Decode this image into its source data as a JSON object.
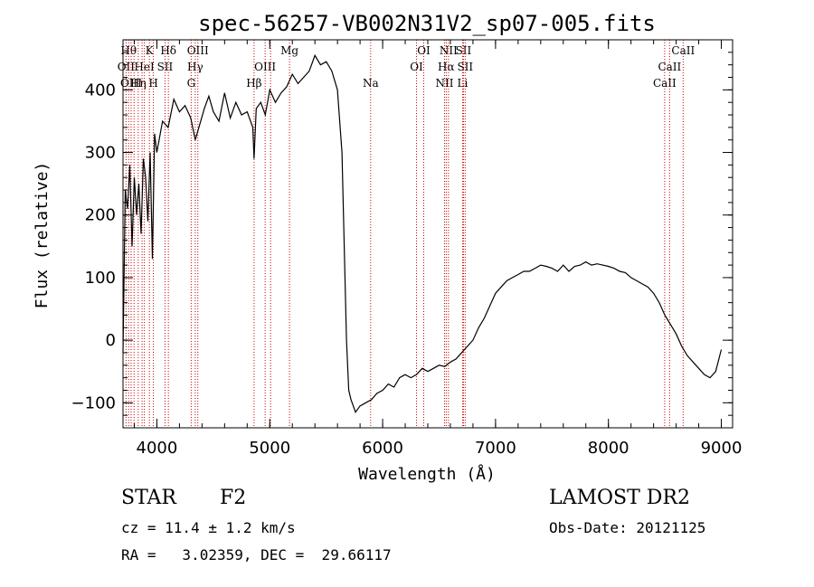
{
  "chart_data": {
    "type": "line",
    "title": "spec-56257-VB002N31V2_sp07-005.fits",
    "xlabel": "Wavelength (Å)",
    "ylabel": "Flux (relative)",
    "xlim": [
      3700,
      9100
    ],
    "ylim": [
      -140,
      480
    ],
    "xticks": [
      4000,
      5000,
      6000,
      7000,
      8000,
      9000
    ],
    "yticks": [
      -100,
      0,
      100,
      200,
      300,
      400
    ],
    "grid": false,
    "line_color": "#000000",
    "marker_color": "#cc0000",
    "series": [
      {
        "x": [
          3700,
          3720,
          3740,
          3760,
          3780,
          3800,
          3820,
          3840,
          3860,
          3880,
          3900,
          3920,
          3940,
          3960,
          3980,
          4000,
          4050,
          4100,
          4150,
          4200,
          4250,
          4300,
          4340,
          4380,
          4420,
          4460,
          4500,
          4550,
          4600,
          4650,
          4700,
          4750,
          4800,
          4850,
          4861,
          4880,
          4920,
          4960,
          5000,
          5050,
          5100,
          5150,
          5200,
          5250,
          5300,
          5350,
          5400,
          5450,
          5500,
          5550,
          5600,
          5640,
          5660,
          5680,
          5700,
          5720,
          5740,
          5760,
          5780,
          5800,
          5850,
          5900,
          5950,
          6000,
          6050,
          6100,
          6150,
          6200,
          6250,
          6300,
          6350,
          6400,
          6450,
          6500,
          6550,
          6600,
          6650,
          6700,
          6750,
          6800,
          6850,
          6900,
          6950,
          7000,
          7050,
          7100,
          7150,
          7200,
          7250,
          7300,
          7350,
          7400,
          7450,
          7500,
          7550,
          7600,
          7650,
          7700,
          7750,
          7800,
          7850,
          7900,
          7950,
          8000,
          8050,
          8100,
          8150,
          8200,
          8250,
          8300,
          8350,
          8400,
          8450,
          8500,
          8550,
          8600,
          8650,
          8700,
          8750,
          8800,
          8850,
          8900,
          8950,
          9000
        ],
        "y": [
          -20,
          240,
          210,
          280,
          150,
          260,
          200,
          250,
          170,
          290,
          260,
          190,
          300,
          130,
          330,
          300,
          350,
          340,
          385,
          365,
          375,
          355,
          320,
          345,
          370,
          390,
          365,
          350,
          395,
          355,
          380,
          360,
          365,
          340,
          290,
          370,
          380,
          360,
          400,
          380,
          395,
          405,
          425,
          410,
          420,
          430,
          455,
          440,
          445,
          430,
          400,
          300,
          150,
          0,
          -80,
          -95,
          -105,
          -115,
          -110,
          -105,
          -100,
          -95,
          -85,
          -80,
          -70,
          -75,
          -60,
          -55,
          -60,
          -55,
          -45,
          -50,
          -45,
          -40,
          -42,
          -35,
          -30,
          -20,
          -10,
          0,
          20,
          35,
          55,
          75,
          85,
          95,
          100,
          105,
          110,
          110,
          115,
          120,
          118,
          115,
          110,
          120,
          110,
          118,
          120,
          125,
          120,
          122,
          120,
          118,
          115,
          110,
          108,
          100,
          95,
          90,
          85,
          75,
          60,
          40,
          25,
          10,
          -10,
          -25,
          -35,
          -45,
          -55,
          -60,
          -50,
          -15
        ]
      }
    ],
    "line_markers": [
      {
        "wave": 3727,
        "label": "OII",
        "row": 1
      },
      {
        "wave": 3750,
        "label": "Hθ",
        "row": 0
      },
      {
        "wave": 3772,
        "label": "OIII",
        "row": 2
      },
      {
        "wave": 3798,
        "label": "",
        "row": 0
      },
      {
        "wave": 3835,
        "label": "Hη",
        "row": 2
      },
      {
        "wave": 3869,
        "label": "",
        "row": 0
      },
      {
        "wave": 3889,
        "label": "HeI",
        "row": 1
      },
      {
        "wave": 3934,
        "label": "K",
        "row": 0
      },
      {
        "wave": 3969,
        "label": "H",
        "row": 2
      },
      {
        "wave": 4072,
        "label": "SII",
        "row": 1
      },
      {
        "wave": 4102,
        "label": "Hδ",
        "row": 0
      },
      {
        "wave": 4304,
        "label": "G",
        "row": 2
      },
      {
        "wave": 4340,
        "label": "Hγ",
        "row": 1
      },
      {
        "wave": 4363,
        "label": "OIII",
        "row": 0
      },
      {
        "wave": 4861,
        "label": "Hβ",
        "row": 2
      },
      {
        "wave": 4959,
        "label": "OIII",
        "row": 1
      },
      {
        "wave": 5007,
        "label": "",
        "row": 1
      },
      {
        "wave": 5175,
        "label": "Mg",
        "row": 0
      },
      {
        "wave": 5894,
        "label": "Na",
        "row": 2
      },
      {
        "wave": 6300,
        "label": "OI",
        "row": 1
      },
      {
        "wave": 6364,
        "label": "OI",
        "row": 0
      },
      {
        "wave": 6548,
        "label": "NII",
        "row": 2
      },
      {
        "wave": 6563,
        "label": "Hα",
        "row": 1
      },
      {
        "wave": 6583,
        "label": "NII",
        "row": 0
      },
      {
        "wave": 6708,
        "label": "Li",
        "row": 2
      },
      {
        "wave": 6716,
        "label": "SII",
        "row": 0
      },
      {
        "wave": 6731,
        "label": "SII",
        "row": 1
      },
      {
        "wave": 8498,
        "label": "CaII",
        "row": 2
      },
      {
        "wave": 8542,
        "label": "CaII",
        "row": 1
      },
      {
        "wave": 8662,
        "label": "CaII",
        "row": 0
      }
    ]
  },
  "info": {
    "class_label": "STAR",
    "subclass_label": "F2",
    "survey": "LAMOST DR2",
    "redshift": "cz = 11.4 ± 1.2 km/s",
    "obs_date": "Obs-Date: 20121125",
    "coords": "RA =   3.02359, DEC =  29.66117"
  }
}
